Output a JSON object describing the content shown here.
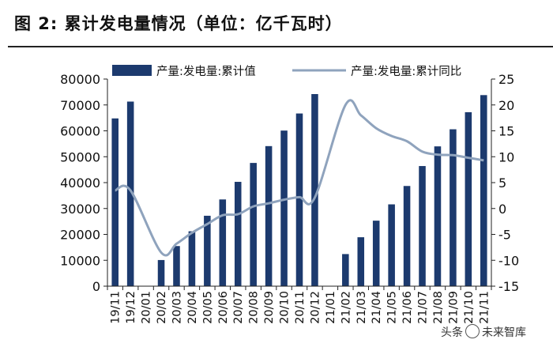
{
  "figure": {
    "title": "图 2:  累计发电量情况（单位：亿千瓦时）",
    "watermark": {
      "text1": "头条",
      "text2": "未来智库"
    }
  },
  "colors": {
    "bar": "#1c3a6e",
    "line": "#8fa3bd",
    "axis": "#222222"
  },
  "chart_data": {
    "type": "bar",
    "categories": [
      "19/11",
      "19/12",
      "20/01",
      "20/02",
      "20/03",
      "20/04",
      "20/05",
      "20/06",
      "20/07",
      "20/08",
      "20/09",
      "20/10",
      "20/11",
      "20/12",
      "21/01",
      "21/02",
      "21/03",
      "21/04",
      "21/05",
      "21/06",
      "21/07",
      "21/08",
      "21/09",
      "21/10",
      "21/11"
    ],
    "series": [
      {
        "name": "产量:发电量:累计值",
        "type": "bar",
        "axis": "left",
        "values": [
          64800,
          71300,
          null,
          10100,
          15500,
          21200,
          27200,
          33500,
          40300,
          47600,
          54100,
          60100,
          66700,
          74200,
          null,
          12400,
          18900,
          25300,
          31600,
          38700,
          46400,
          54000,
          60600,
          67200,
          73800
        ]
      },
      {
        "name": "产量:发电量:累计同比",
        "type": "line",
        "axis": "right",
        "values": [
          3.5,
          3.5,
          null,
          -8.5,
          -6.8,
          -4.7,
          -3.0,
          -1.3,
          -1.1,
          0.4,
          1.0,
          1.7,
          2.2,
          2.1,
          null,
          20.0,
          18.0,
          15.5,
          14.0,
          13.0,
          11.0,
          10.4,
          10.3,
          9.8,
          9.3
        ]
      }
    ],
    "y_left": {
      "min": 0,
      "max": 80000,
      "ticks": [
        0,
        10000,
        20000,
        30000,
        40000,
        50000,
        60000,
        70000,
        80000
      ]
    },
    "y_right": {
      "min": -15,
      "max": 25,
      "ticks": [
        -15,
        -10,
        -5,
        0,
        5,
        10,
        15,
        20,
        25
      ]
    },
    "grid": false,
    "legend_position": "top"
  }
}
